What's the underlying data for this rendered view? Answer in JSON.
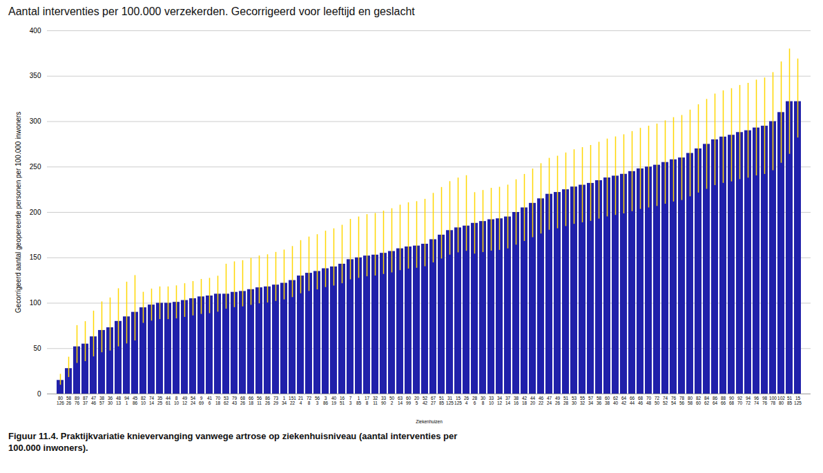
{
  "chart_data": {
    "type": "bar",
    "title": "Aantal interventies per 100.000 verzekerden. Gecorrigeerd voor leeftijd en geslacht",
    "xlabel": "Ziekenhuizen",
    "ylabel": "Gecorrigeerd aantal geopereerde personen per 100.000 inwoners",
    "caption": "Figuur 11.4. Praktijkvariatie knievervanging vanwege artrose op ziekenhuisniveau (aantal interventies per\n100.000 inwoners).",
    "categories": [
      "80\n126",
      "58\n26",
      "89\n76",
      "87\n37",
      "47\n46",
      "38\n57",
      "36\n30",
      "48\n13",
      "94\n1",
      "45\n86",
      "82\n10",
      "74\n14",
      "35\n25",
      "44\n61",
      "8\n10",
      "49\n12",
      "54\n24",
      "9\n69",
      "41\n6",
      "70\n18",
      "53\n62",
      "79\n43",
      "68\n26",
      "66\n18",
      "56\n11",
      "86\n26",
      "73\n29",
      "1\n34",
      "151\n22",
      "21\n4",
      "72\n8",
      "56\n3",
      "3\n86",
      "40\n19",
      "16\n51",
      "7\n3",
      "1\n85",
      "17\n8",
      "32\n11",
      "33\n90",
      "50\n2",
      "63\n14",
      "60\n99",
      "20\n5",
      "52\n42",
      "67\n27",
      "51\n85",
      "31\n125",
      "15\n125",
      "26\n4",
      "28\n6",
      "30\n8",
      "33\n10",
      "34\n12",
      "37\n14",
      "38\n16",
      "42\n18",
      "44\n20",
      "46\n22",
      "47\n24",
      "49\n26",
      "51\n28",
      "53\n30",
      "55\n32",
      "57\n34",
      "58\n36",
      "60\n38",
      "62\n40",
      "64\n42",
      "66\n44",
      "68\n46",
      "70\n48",
      "72\n50",
      "74\n52",
      "76\n54",
      "78\n56",
      "80\n58",
      "82\n60",
      "84\n62",
      "86\n64",
      "88\n66",
      "90\n68",
      "92\n70",
      "94\n72",
      "96\n74",
      "98\n76",
      "100\n78",
      "102\n80",
      "51\n85",
      "15\n125"
    ],
    "values": [
      15,
      28,
      52,
      55,
      63,
      70,
      73,
      80,
      85,
      90,
      95,
      98,
      100,
      100,
      101,
      103,
      105,
      107,
      108,
      110,
      110,
      112,
      113,
      115,
      117,
      118,
      120,
      122,
      125,
      130,
      133,
      135,
      138,
      140,
      143,
      148,
      150,
      152,
      153,
      155,
      157,
      160,
      162,
      163,
      165,
      170,
      175,
      180,
      183,
      185,
      188,
      190,
      192,
      193,
      195,
      200,
      205,
      210,
      215,
      220,
      222,
      225,
      228,
      230,
      232,
      235,
      238,
      240,
      242,
      245,
      248,
      250,
      252,
      255,
      258,
      260,
      265,
      270,
      275,
      280,
      283,
      285,
      288,
      290,
      293,
      295,
      300,
      310,
      322,
      322
    ],
    "color": "#2020AA",
    "error_bars": {
      "color": "#FFD700",
      "low": [
        5.25,
        9.8,
        18.2,
        19.25,
        22.05,
        24.5,
        25.55,
        28,
        29.75,
        31.5,
        17.1,
        17.64,
        18,
        18,
        18.18,
        18.54,
        18.9,
        19.26,
        19.44,
        19.8,
        16.5,
        16.8,
        16.95,
        17.25,
        17.55,
        17.7,
        18,
        18.3,
        18.75,
        19.5,
        19.95,
        20.25,
        20.7,
        21,
        21.45,
        22.2,
        22.5,
        22.8,
        22.95,
        23.25,
        23.55,
        24,
        24.3,
        24.45,
        24.75,
        25.5,
        26.25,
        27,
        27.45,
        27.75,
        33.84,
        34.2,
        34.56,
        34.74,
        35.1,
        36,
        36.9,
        37.8,
        38.7,
        39.6,
        39.96,
        40.5,
        41.04,
        41.4,
        41.76,
        42.3,
        42.84,
        43.2,
        43.56,
        44.1,
        44.64,
        45,
        45.36,
        45.9,
        46.44,
        46.8,
        47.7,
        48.6,
        49.5,
        50.4,
        50.94,
        51.3,
        51.84,
        52.2,
        52.74,
        53.1,
        54,
        55.8,
        57.96,
        40
      ],
      "high": [
        6.75,
        12.6,
        23.4,
        24.75,
        28.35,
        31.5,
        32.85,
        36,
        38.25,
        40.5,
        17.1,
        17.64,
        18,
        18,
        18.18,
        18.54,
        18.9,
        19.26,
        19.44,
        19.8,
        33,
        33.6,
        33.9,
        34.5,
        35.1,
        35.4,
        36,
        36.6,
        37.5,
        39,
        39.9,
        40.5,
        41.4,
        42,
        42.9,
        44.4,
        45,
        45.6,
        45.9,
        46.5,
        47.1,
        48,
        48.6,
        48.9,
        49.5,
        51,
        52.5,
        54,
        54.9,
        55.5,
        33.84,
        34.2,
        34.56,
        34.74,
        35.1,
        36,
        36.9,
        37.8,
        38.7,
        39.6,
        39.96,
        40.5,
        41.04,
        41.4,
        41.76,
        42.3,
        42.84,
        43.2,
        43.56,
        44.1,
        44.64,
        45,
        45.36,
        45.9,
        46.44,
        46.8,
        47.7,
        48.6,
        49.5,
        50.4,
        50.94,
        51.3,
        51.84,
        52.2,
        52.74,
        53.1,
        54,
        55.8,
        57.96,
        47
      ]
    },
    "ylim": [
      0,
      400
    ],
    "yticks": [
      0,
      50,
      100,
      150,
      200,
      250,
      300,
      350,
      400
    ],
    "grid": true
  }
}
